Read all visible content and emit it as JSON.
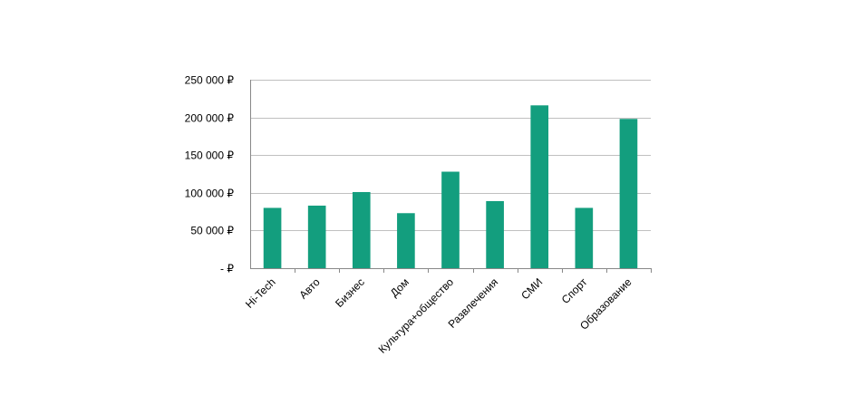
{
  "chart_data": {
    "type": "bar",
    "title": "",
    "xlabel": "",
    "ylabel": "",
    "categories": [
      "Hi-Tech",
      "Авто",
      "Бизнес",
      "Дом",
      "Культура+общество",
      "Развлечения",
      "СМИ",
      "Спорт",
      "Образование"
    ],
    "values": [
      80000,
      83000,
      101000,
      73000,
      128000,
      89000,
      216000,
      80000,
      198000
    ],
    "ylim": [
      0,
      250000
    ],
    "yticks": [
      0,
      50000,
      100000,
      150000,
      200000,
      250000
    ],
    "ytick_labels": [
      "-   ₽",
      "50 000 ₽",
      "100 000 ₽",
      "150 000 ₽",
      "200 000 ₽",
      "250 000 ₽"
    ],
    "grid": true,
    "legend": "none",
    "colors": {
      "bar": "#139e7e",
      "grid": "#c0c0c0",
      "axis": "#888888"
    }
  }
}
